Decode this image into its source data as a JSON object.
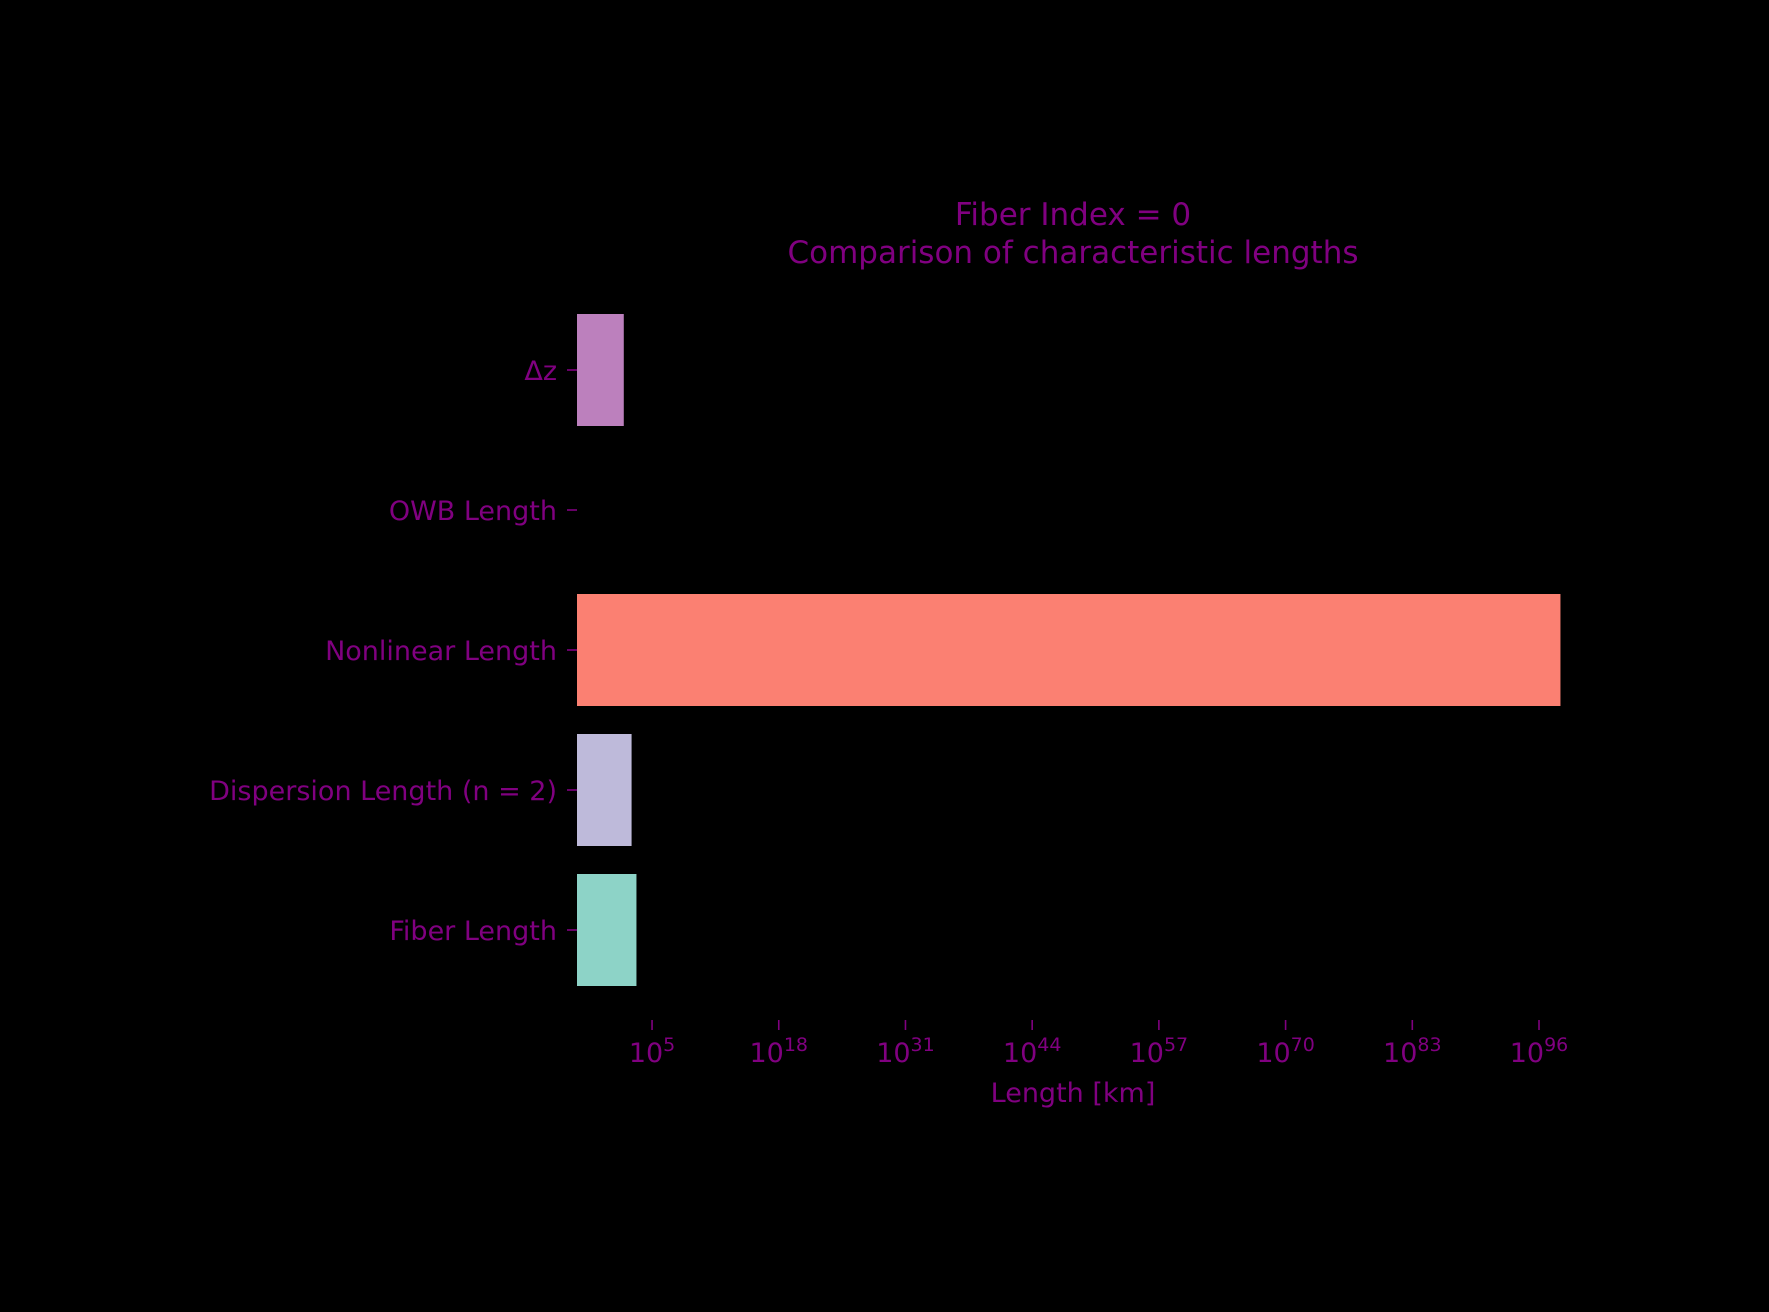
{
  "chart_data": {
    "type": "bar",
    "orientation": "horizontal",
    "title": [
      "Fiber Index = 0",
      "Comparison of characteristic lengths"
    ],
    "xlabel": "Length [km]",
    "ylabel": "",
    "xscale": "log",
    "xlim_exponent": [
      -2.7,
      100
    ],
    "categories": [
      "Fiber Length",
      "Dispersion Length (n = 2)",
      "Nonlinear Length",
      "OWB Length",
      "Δz"
    ],
    "log10_values": [
      3.4,
      2.9,
      98.2,
      null,
      2.1
    ],
    "colors": [
      "#8dd3c7",
      "#bebada",
      "#fb8072",
      "#ffffb3",
      "#bc80bd"
    ],
    "xtick_exponents": [
      "5",
      "18",
      "31",
      "44",
      "57",
      "70",
      "83",
      "96"
    ],
    "xtick_base": "10",
    "grid": false,
    "legend": "none",
    "text_color": "#800080",
    "background": "#000000"
  }
}
